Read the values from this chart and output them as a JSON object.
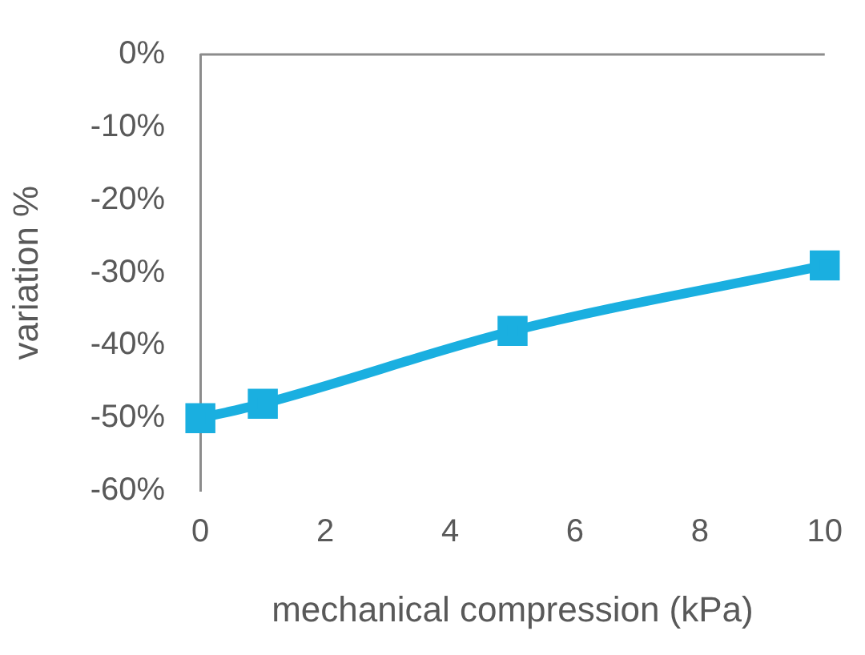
{
  "chart_data": {
    "type": "line",
    "xlabel": "mechanical compression (kPa)",
    "ylabel": "variation %",
    "x": [
      0,
      1,
      5,
      10
    ],
    "series": [
      {
        "color": "#1aafe0",
        "values": [
          -50,
          -48,
          -38,
          -29
        ]
      }
    ],
    "xlim": [
      0,
      10
    ],
    "xticks": [
      0,
      2,
      4,
      6,
      8,
      10
    ],
    "ylim": [
      -60,
      0
    ],
    "yticks": [
      {
        "value": -60,
        "label": "-60%"
      },
      {
        "value": -50,
        "label": "-50%"
      },
      {
        "value": -40,
        "label": "-40%"
      },
      {
        "value": -30,
        "label": "-30%"
      },
      {
        "value": -20,
        "label": "-20%"
      },
      {
        "value": -10,
        "label": "-10%"
      },
      {
        "value": 0,
        "label": "0%"
      }
    ],
    "grid": false,
    "legend": false,
    "marker": "square",
    "line_style": "solid"
  }
}
